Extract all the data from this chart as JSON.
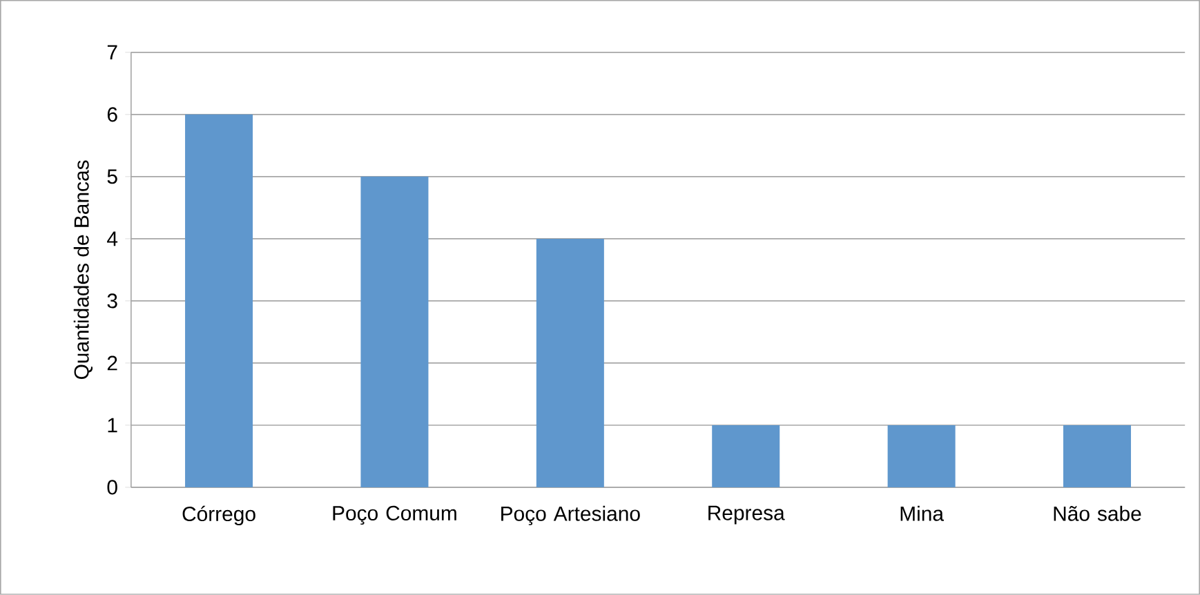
{
  "chart_data": {
    "type": "bar",
    "ylabel": "Quantidades de Bancas",
    "categories": [
      "Córrego",
      "Poço Comum",
      "Poço Artesiano",
      "Represa",
      "Mina",
      "Não sabe"
    ],
    "values": [
      6,
      5,
      4,
      1,
      1,
      1
    ],
    "color": "#5f97cd",
    "ylim": [
      0,
      7
    ],
    "yticks": [
      0,
      1,
      2,
      3,
      4,
      5,
      6,
      7
    ],
    "grid": "y"
  }
}
